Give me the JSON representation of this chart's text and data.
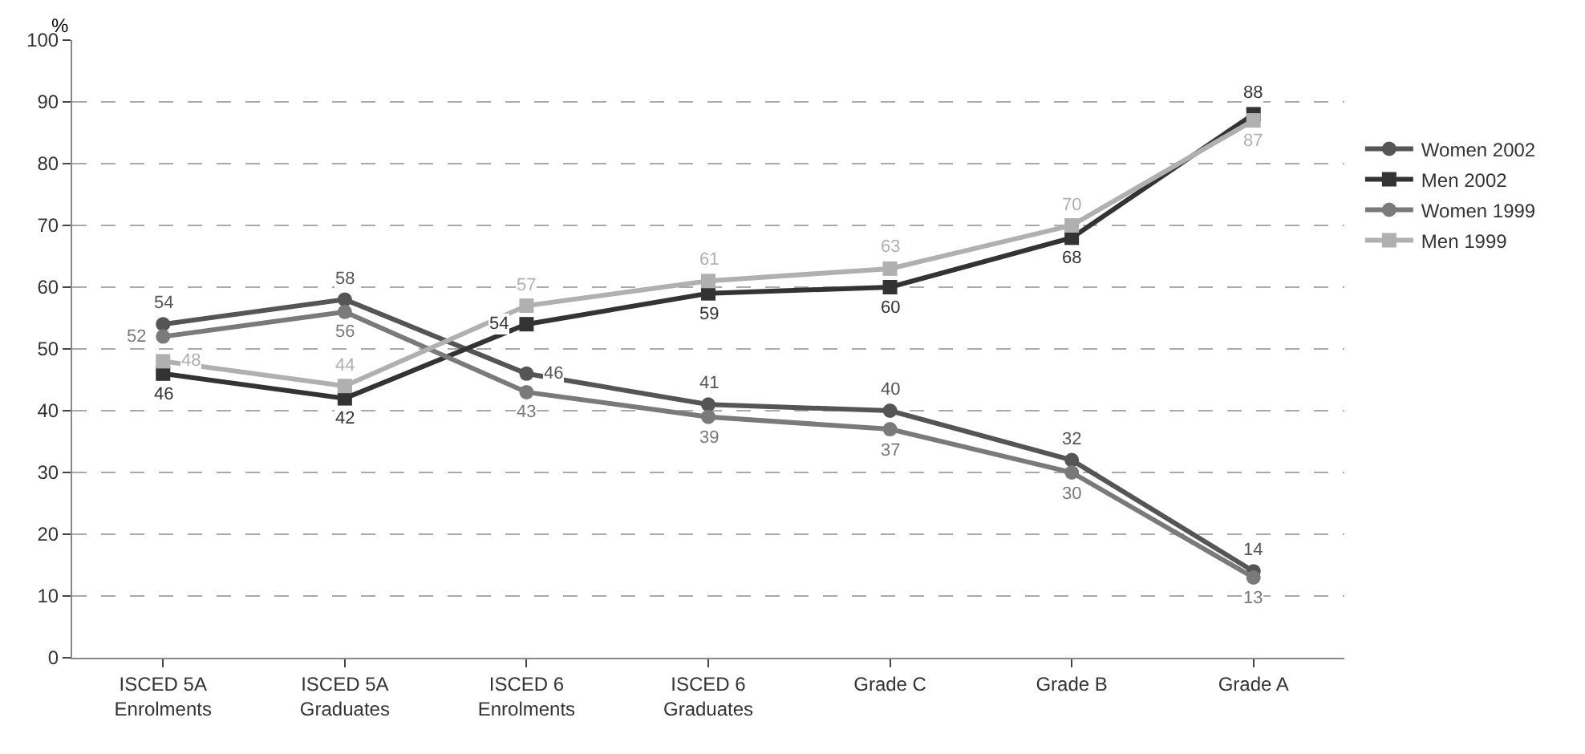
{
  "chart_data": {
    "type": "line",
    "ylabel": "%",
    "categories": [
      "ISCED 5A\nEnrolments",
      "ISCED 5A\nGraduates",
      "ISCED 6\nEnrolments",
      "ISCED 6\nGraduates",
      "Grade C",
      "Grade B",
      "Grade A"
    ],
    "series": [
      {
        "name": "Women 2002",
        "color": "#555555",
        "marker": "circle",
        "values": [
          54,
          58,
          46,
          41,
          40,
          32,
          14
        ]
      },
      {
        "name": "Men 2002",
        "color": "#333333",
        "marker": "square",
        "values": [
          46,
          42,
          54,
          59,
          60,
          68,
          88
        ]
      },
      {
        "name": "Women 1999",
        "color": "#7a7a7a",
        "marker": "circle",
        "values": [
          52,
          56,
          43,
          39,
          37,
          30,
          13
        ]
      },
      {
        "name": "Men 1999",
        "color": "#b0b0b0",
        "marker": "square",
        "values": [
          48,
          44,
          57,
          61,
          63,
          70,
          87
        ]
      }
    ],
    "ylim": [
      0,
      100
    ],
    "yticks": [
      0,
      10,
      20,
      30,
      40,
      50,
      60,
      70,
      80,
      90,
      100
    ],
    "grid": "y",
    "legend": "right",
    "data_labels": true,
    "line_style": "solid"
  }
}
